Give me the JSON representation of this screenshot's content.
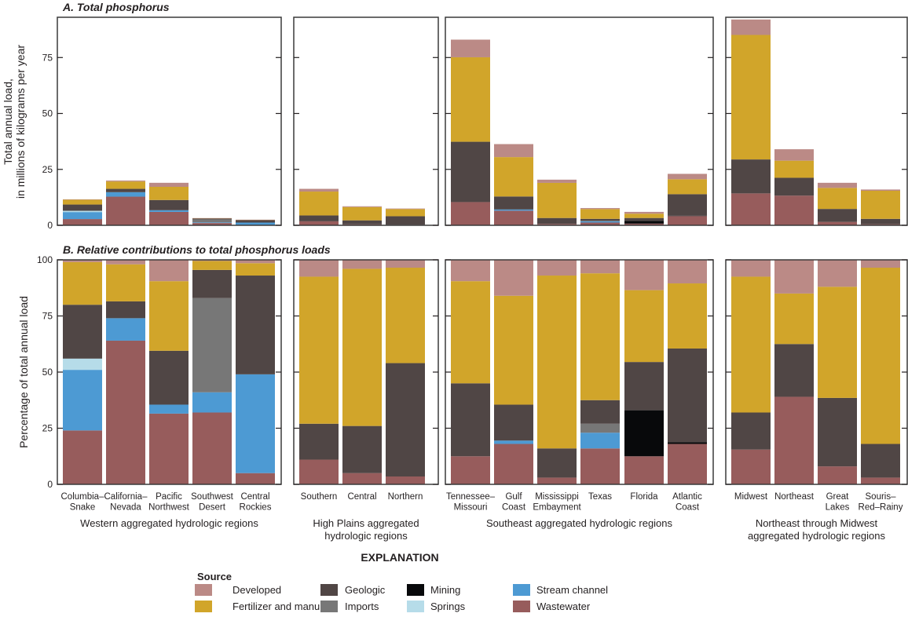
{
  "chart_data": [
    {
      "type": "bar",
      "stacked": true,
      "title": "A.  Total phosphorus",
      "ylabel_lines": [
        "Total annual load,",
        "in millions of kilograms per year"
      ],
      "ylim": [
        0,
        93
      ],
      "yticks": [
        0,
        25,
        50,
        75
      ],
      "note": "Bar totals; segments split by the source percentages of panel B",
      "totals": {
        "Columbia–Snake": 11.6,
        "California–Nevada": 20,
        "Pacific Northwest": 19,
        "Southwest Desert": 3.2,
        "Central Rockies": 2.5,
        "Southern": 16.3,
        "Central": 8.5,
        "Northern": 7.5,
        "Tennessee–Missouri": 83,
        "Gulf Coast": 36.3,
        "Mississippi Embayment": 20.4,
        "Texas": 7.7,
        "Florida": 6,
        "Atlantic Coast": 23,
        "Midwest": 92,
        "Northeast": 34,
        "Great Lakes": 19,
        "Souris–Red–Rainy": 16
      }
    },
    {
      "type": "bar",
      "stacked": true,
      "title": "B.  Relative contributions to total phosphorus loads",
      "ylabel": "Percentage of total annual load",
      "ylim": [
        0,
        100
      ],
      "yticks": [
        0,
        25,
        50,
        75,
        100
      ],
      "series_order": [
        "Wastewater",
        "Stream channel",
        "Springs",
        "Imports",
        "Mining",
        "Geologic",
        "Fertilizer and manure",
        "Developed"
      ],
      "values": {
        "Columbia–Snake": [
          24,
          27,
          5,
          0,
          0,
          24,
          19,
          1
        ],
        "California–Nevada": [
          64,
          10,
          0,
          0,
          0,
          7.5,
          16.5,
          2
        ],
        "Pacific Northwest": [
          31.5,
          4,
          0,
          0,
          0,
          24,
          31,
          9.5
        ],
        "Southwest Desert": [
          32,
          9,
          0,
          42,
          0,
          12.5,
          4,
          0.5
        ],
        "Central Rockies": [
          5,
          44,
          0,
          0,
          0,
          44,
          5.5,
          1.5
        ],
        "Southern": [
          11,
          0,
          0,
          0,
          0,
          16,
          65.5,
          7.5
        ],
        "Central": [
          5,
          0,
          0,
          0,
          0,
          21,
          70,
          4
        ],
        "Northern": [
          3.5,
          0,
          0,
          0,
          0,
          50.5,
          42.5,
          3.5
        ],
        "Tennessee–Missouri": [
          12.5,
          0,
          0,
          0,
          0,
          32.5,
          45.5,
          9.5
        ],
        "Gulf Coast": [
          18,
          1.5,
          0,
          0,
          0,
          16,
          48.5,
          16
        ],
        "Mississippi Embayment": [
          3,
          0,
          0,
          0,
          0,
          13,
          77,
          7
        ],
        "Texas": [
          16,
          7,
          0,
          4,
          0,
          10.5,
          56.5,
          6
        ],
        "Florida": [
          12.5,
          0,
          0,
          0,
          20.5,
          21.5,
          32,
          13.5
        ],
        "Atlantic Coast": [
          18,
          0,
          0,
          0,
          0.7,
          41.8,
          29,
          10.5
        ],
        "Midwest": [
          15.5,
          0,
          0,
          0,
          0,
          16.5,
          60.5,
          7.5
        ],
        "Northeast": [
          39,
          0,
          0,
          0,
          0,
          23.5,
          22.5,
          15
        ],
        "Great Lakes": [
          8,
          0,
          0,
          0,
          0,
          30.5,
          49.5,
          12
        ],
        "Souris–Red–Rainy": [
          3,
          0,
          0,
          0,
          0,
          15,
          78.5,
          3.5
        ]
      }
    }
  ],
  "groups": [
    {
      "label_lines": [
        "Western aggregated hydrologic regions"
      ],
      "categories": [
        [
          "Columbia–",
          "Snake"
        ],
        [
          "California–",
          "Nevada"
        ],
        [
          "Pacific",
          "Northwest"
        ],
        [
          "Southwest",
          "Desert"
        ],
        [
          "Central",
          "Rockies"
        ]
      ],
      "keys": [
        "Columbia–Snake",
        "California–Nevada",
        "Pacific Northwest",
        "Southwest Desert",
        "Central Rockies"
      ]
    },
    {
      "label_lines": [
        "High Plains aggregated",
        "hydrologic regions"
      ],
      "categories": [
        [
          "Southern"
        ],
        [
          "Central"
        ],
        [
          "Northern"
        ]
      ],
      "keys": [
        "Southern",
        "Central",
        "Northern"
      ]
    },
    {
      "label_lines": [
        "Southeast aggregated hydrologic regions"
      ],
      "categories": [
        [
          "Tennessee–",
          "Missouri"
        ],
        [
          "Gulf",
          "Coast"
        ],
        [
          "Mississippi",
          "Embayment"
        ],
        [
          "Texas"
        ],
        [
          "Florida"
        ],
        [
          "Atlantic",
          "Coast"
        ]
      ],
      "keys": [
        "Tennessee–Missouri",
        "Gulf Coast",
        "Mississippi Embayment",
        "Texas",
        "Florida",
        "Atlantic Coast"
      ]
    },
    {
      "label_lines": [
        "Northeast through Midwest",
        "aggregated hydrologic regions"
      ],
      "categories": [
        [
          "Midwest"
        ],
        [
          "Northeast"
        ],
        [
          "Great",
          "Lakes"
        ],
        [
          "Souris–",
          "Red–Rainy"
        ]
      ],
      "keys": [
        "Midwest",
        "Northeast",
        "Great Lakes",
        "Souris–Red–Rainy"
      ]
    }
  ],
  "legend": {
    "title": "EXPLANATION",
    "subtitle": "Source",
    "items": [
      {
        "label": "Developed",
        "color": "#bb8a86"
      },
      {
        "label": "Fertilizer and manure",
        "color": "#d1a52a"
      },
      {
        "label": "Geologic",
        "color": "#504645"
      },
      {
        "label": "Imports",
        "color": "#777777"
      },
      {
        "label": "Mining",
        "color": "#08090b"
      },
      {
        "label": "Springs",
        "color": "#b6dce9"
      },
      {
        "label": "Stream channel",
        "color": "#4d9ad3"
      },
      {
        "label": "Wastewater",
        "color": "#975c5c"
      }
    ]
  }
}
